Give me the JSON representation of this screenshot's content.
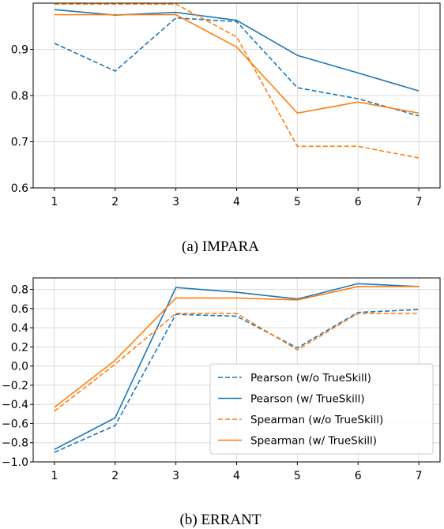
{
  "colors": {
    "blue": "#1f77b4",
    "orange": "#ff7f0e",
    "grid": "#dcdcdc",
    "axis": "#000000"
  },
  "chart_data": [
    {
      "type": "line",
      "caption": "(a) IMPARA",
      "x": [
        1,
        2,
        3,
        4,
        5,
        6,
        7
      ],
      "xlim": [
        0.65,
        7.35
      ],
      "ylim": [
        0.6,
        1.0
      ],
      "yticks": [
        0.6,
        0.7,
        0.8,
        0.9
      ],
      "yticklabels": [
        "0.6",
        "0.7",
        "0.8",
        "0.9"
      ],
      "xticklabels": [
        "1",
        "2",
        "3",
        "4",
        "5",
        "6",
        "7"
      ],
      "grid": true,
      "legend": false,
      "series": [
        {
          "name": "Pearson (w/o TrueSkill)",
          "color": "blue",
          "style": "dashed",
          "values": [
            0.913,
            0.853,
            0.968,
            0.96,
            0.817,
            0.793,
            0.756
          ]
        },
        {
          "name": "Pearson (w/ TrueSkill)",
          "color": "blue",
          "style": "solid",
          "values": [
            0.986,
            0.974,
            0.98,
            0.963,
            0.887,
            0.849,
            0.81
          ]
        },
        {
          "name": "Spearman (w/o TrueSkill)",
          "color": "orange",
          "style": "dashed",
          "values": [
            0.998,
            0.998,
            0.998,
            0.927,
            0.69,
            0.69,
            0.665
          ]
        },
        {
          "name": "Spearman (w/ TrueSkill)",
          "color": "orange",
          "style": "solid",
          "values": [
            0.975,
            0.975,
            0.975,
            0.905,
            0.762,
            0.786,
            0.762
          ]
        }
      ]
    },
    {
      "type": "line",
      "caption": "(b) ERRANT",
      "x": [
        1,
        2,
        3,
        4,
        5,
        6,
        7
      ],
      "xlim": [
        0.65,
        7.35
      ],
      "ylim": [
        -1.0,
        0.92
      ],
      "yticks": [
        -1.0,
        -0.8,
        -0.6,
        -0.4,
        -0.2,
        0.0,
        0.2,
        0.4,
        0.6,
        0.8
      ],
      "yticklabels": [
        "−1.0",
        "−0.8",
        "−0.6",
        "−0.4",
        "−0.2",
        "0.0",
        "0.2",
        "0.4",
        "0.6",
        "0.8"
      ],
      "xticklabels": [
        "1",
        "2",
        "3",
        "4",
        "5",
        "6",
        "7"
      ],
      "grid": true,
      "legend": true,
      "legend_position": "lower-right",
      "series": [
        {
          "name": "Pearson (w/o TrueSkill)",
          "color": "blue",
          "style": "dashed",
          "values": [
            -0.9,
            -0.62,
            0.54,
            0.52,
            0.19,
            0.56,
            0.59
          ]
        },
        {
          "name": "Pearson (w/ TrueSkill)",
          "color": "blue",
          "style": "solid",
          "values": [
            -0.87,
            -0.54,
            0.82,
            0.77,
            0.7,
            0.86,
            0.83
          ]
        },
        {
          "name": "Spearman (w/o TrueSkill)",
          "color": "orange",
          "style": "dashed",
          "values": [
            -0.47,
            0.02,
            0.55,
            0.55,
            0.17,
            0.55,
            0.55
          ]
        },
        {
          "name": "Spearman (w/ TrueSkill)",
          "color": "orange",
          "style": "solid",
          "values": [
            -0.43,
            0.06,
            0.71,
            0.71,
            0.69,
            0.83,
            0.83
          ]
        }
      ]
    }
  ]
}
